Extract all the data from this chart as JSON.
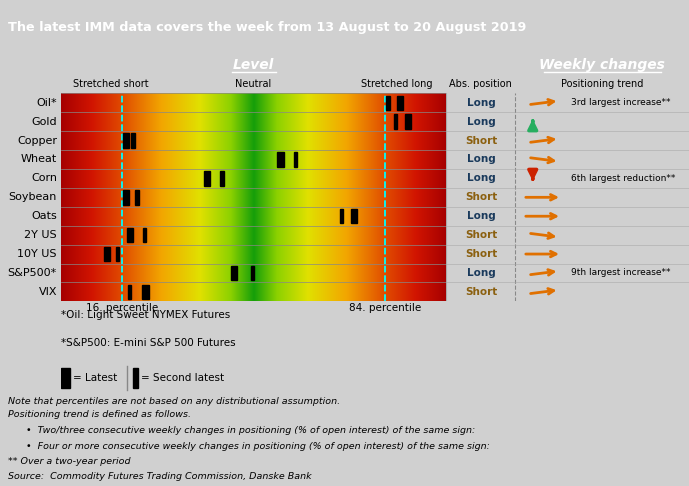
{
  "title": "The latest IMM data covers the week from 13 August to 20 August 2019",
  "title_bg": "#1a3a5c",
  "header_bg": "#1a5276",
  "rows": [
    "Oil*",
    "Gold",
    "Copper",
    "Wheat",
    "Corn",
    "Soybean",
    "Oats",
    "2Y US",
    "10Y US",
    "S&P500*",
    "VIX"
  ],
  "abs_positions": [
    "Long",
    "Long",
    "Short",
    "Long",
    "Long",
    "Short",
    "Long",
    "Short",
    "Short",
    "Long",
    "Short"
  ],
  "position_trend_text": [
    "3rd largest increase**",
    "",
    "",
    "",
    "6th largest reduction**",
    "",
    "",
    "",
    "",
    "9th largest increase**",
    ""
  ],
  "bar_latest": [
    88,
    90,
    17,
    57,
    38,
    17,
    76,
    18,
    12,
    45,
    22
  ],
  "bar_second": [
    85,
    87,
    19,
    61,
    42,
    20,
    73,
    22,
    15,
    50,
    18
  ],
  "note_text1": "Note that percentiles are not based on any distributional assumption.",
  "note_text2": "Positioning trend is defined as follows.",
  "note_text3": "Two/three consecutive weekly changes in positioning (% of open interest) of the same sign:",
  "note_text4": "Four or more consecutive weekly changes in positioning (% of open interest) of the same sign:",
  "note_text5": "** Over a two-year period",
  "note_text6": "Source:  Commodity Futures Trading Commission, Danske Bank",
  "footnote1": "*Oil: Light Sweet NYMEX Futures",
  "footnote2": "*S&P500: E-mini S&P 500 Futures",
  "level_header": "Level",
  "weekly_header": "Weekly changes",
  "stretched_short": "Stretched short",
  "neutral": "Neutral",
  "stretched_long": "Stretched long",
  "abs_position_header": "Abs. position",
  "positioning_trend_header": "Positioning trend",
  "arrow_types": [
    "orange_diag_up",
    "green_up_solid",
    "orange_diag_up",
    "orange_diag_down",
    "red_down_solid",
    "orange_right",
    "orange_right",
    "orange_diag_down",
    "orange_right",
    "orange_diag_up",
    "orange_diag_up"
  ],
  "gradient_stops": [
    [
      0.0,
      [
        0.65,
        0.0,
        0.0
      ]
    ],
    [
      0.08,
      [
        0.82,
        0.08,
        0.0
      ]
    ],
    [
      0.16,
      [
        0.88,
        0.3,
        0.0
      ]
    ],
    [
      0.26,
      [
        0.95,
        0.65,
        0.0
      ]
    ],
    [
      0.36,
      [
        0.88,
        0.88,
        0.0
      ]
    ],
    [
      0.44,
      [
        0.55,
        0.82,
        0.0
      ]
    ],
    [
      0.5,
      [
        0.08,
        0.62,
        0.04
      ]
    ],
    [
      0.56,
      [
        0.55,
        0.82,
        0.0
      ]
    ],
    [
      0.64,
      [
        0.88,
        0.88,
        0.0
      ]
    ],
    [
      0.74,
      [
        0.95,
        0.65,
        0.0
      ]
    ],
    [
      0.84,
      [
        0.88,
        0.3,
        0.0
      ]
    ],
    [
      0.92,
      [
        0.82,
        0.08,
        0.0
      ]
    ],
    [
      1.0,
      [
        0.65,
        0.0,
        0.0
      ]
    ]
  ]
}
